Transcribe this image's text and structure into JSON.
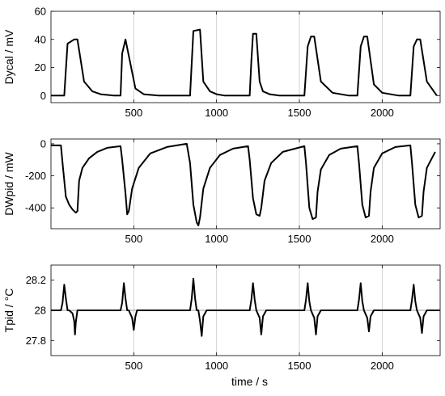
{
  "chart_data": [
    {
      "type": "line",
      "title": "",
      "xlabel": "",
      "ylabel": "Dycal / mV",
      "xlim": [
        0,
        2350
      ],
      "ylim": [
        -5,
        60
      ],
      "xticks": [
        500,
        1000,
        1500,
        2000
      ],
      "xtick_labels": [
        "500",
        "1000",
        "1500",
        "2000"
      ],
      "yticks": [
        0,
        20,
        40,
        60
      ],
      "ytick_labels": [
        "0",
        "20",
        "40",
        "60"
      ],
      "grid": "vertical",
      "series": [
        {
          "style": "black",
          "x": [
            0,
            80,
            100,
            140,
            160,
            200,
            250,
            300,
            380,
            420,
            430,
            450,
            510,
            560,
            650,
            800,
            840,
            860,
            900,
            920,
            960,
            1000,
            1050,
            1100,
            1200,
            1210,
            1220,
            1240,
            1260,
            1280,
            1320,
            1380,
            1440,
            1530,
            1550,
            1570,
            1590,
            1630,
            1700,
            1800,
            1850,
            1870,
            1890,
            1910,
            1950,
            2000,
            2100,
            2170,
            2190,
            2210,
            2230,
            2270,
            2330
          ],
          "values": [
            0,
            0,
            37,
            40,
            40,
            10,
            3,
            1,
            0,
            0,
            30,
            40,
            5,
            1,
            0,
            0,
            0,
            46,
            47,
            10,
            3,
            1,
            0,
            0,
            0,
            25,
            44,
            44,
            10,
            3,
            1,
            0,
            0,
            0,
            35,
            42,
            42,
            10,
            2,
            0,
            0,
            35,
            42,
            42,
            8,
            2,
            0,
            0,
            35,
            40,
            40,
            10,
            0
          ]
        }
      ]
    },
    {
      "type": "line",
      "title": "",
      "xlabel": "",
      "ylabel": "DWpid / mW",
      "xlim": [
        0,
        2350
      ],
      "ylim": [
        -530,
        30
      ],
      "xticks": [
        500,
        1000,
        1500,
        2000
      ],
      "xtick_labels": [
        "500",
        "1000",
        "1500",
        "2000"
      ],
      "yticks": [
        -400,
        -200,
        0
      ],
      "ytick_labels": [
        "-400",
        "-200",
        "0"
      ],
      "grid": "vertical",
      "series": [
        {
          "style": "black",
          "x": [
            0,
            60,
            70,
            90,
            110,
            130,
            150,
            160,
            170,
            190,
            230,
            280,
            340,
            420,
            430,
            450,
            460,
            470,
            490,
            530,
            600,
            700,
            820,
            840,
            860,
            880,
            890,
            900,
            920,
            960,
            1020,
            1100,
            1190,
            1200,
            1220,
            1240,
            1260,
            1270,
            1290,
            1330,
            1400,
            1530,
            1540,
            1560,
            1580,
            1600,
            1610,
            1630,
            1680,
            1750,
            1850,
            1860,
            1880,
            1900,
            1920,
            1930,
            1950,
            2000,
            2080,
            2170,
            2180,
            2200,
            2220,
            2240,
            2250,
            2270,
            2320
          ],
          "values": [
            -10,
            -10,
            -120,
            -330,
            -380,
            -410,
            -430,
            -420,
            -230,
            -150,
            -90,
            -50,
            -25,
            -15,
            -100,
            -310,
            -440,
            -420,
            -280,
            -150,
            -60,
            -20,
            0,
            -120,
            -380,
            -490,
            -510,
            -460,
            -280,
            -150,
            -70,
            -30,
            -15,
            -100,
            -340,
            -440,
            -450,
            -400,
            -230,
            -120,
            -50,
            -15,
            -120,
            -400,
            -470,
            -460,
            -300,
            -160,
            -70,
            -30,
            -15,
            -120,
            -380,
            -460,
            -450,
            -300,
            -150,
            -60,
            -20,
            -10,
            -120,
            -380,
            -460,
            -450,
            -300,
            -150,
            -50
          ]
        }
      ]
    },
    {
      "type": "line",
      "title": "",
      "xlabel": "time / s",
      "ylabel": "Tpid / °C",
      "xlim": [
        0,
        2350
      ],
      "ylim": [
        27.7,
        28.3
      ],
      "xticks": [
        500,
        1000,
        1500,
        2000
      ],
      "xtick_labels": [
        "500",
        "1000",
        "1500",
        "2000"
      ],
      "yticks": [
        27.8,
        28,
        28.2
      ],
      "ytick_labels": [
        "27.8",
        "28",
        "28.2"
      ],
      "grid": "vertical",
      "series": [
        {
          "style": "gray",
          "x": [
            0,
            2350
          ],
          "values": [
            28.0,
            28.0
          ]
        },
        {
          "style": "black",
          "x": [
            0,
            60,
            70,
            80,
            90,
            100,
            110,
            130,
            140,
            145,
            150,
            160,
            180,
            220,
            420,
            430,
            440,
            450,
            460,
            470,
            490,
            500,
            510,
            520,
            540,
            580,
            840,
            850,
            860,
            870,
            880,
            890,
            900,
            910,
            920,
            940,
            980,
            1200,
            1210,
            1220,
            1230,
            1240,
            1260,
            1270,
            1280,
            1300,
            1340,
            1530,
            1540,
            1550,
            1560,
            1570,
            1590,
            1600,
            1610,
            1630,
            1670,
            1850,
            1860,
            1870,
            1880,
            1890,
            1910,
            1920,
            1930,
            1950,
            1990,
            2170,
            2180,
            2190,
            2200,
            2210,
            2230,
            2240,
            2250,
            2270,
            2350
          ],
          "values": [
            28.0,
            28.0,
            28.05,
            28.17,
            28.08,
            28.0,
            28.0,
            27.98,
            27.93,
            27.84,
            27.92,
            28.0,
            28.0,
            28.0,
            28.0,
            28.05,
            28.18,
            28.08,
            28.0,
            28.0,
            27.95,
            27.87,
            27.96,
            28.0,
            28.0,
            28.0,
            28.0,
            28.08,
            28.21,
            28.08,
            28.0,
            28.0,
            27.93,
            27.83,
            27.96,
            28.0,
            28.0,
            28.0,
            28.07,
            28.18,
            28.07,
            28.0,
            27.95,
            27.84,
            27.96,
            28.0,
            28.0,
            28.0,
            28.07,
            28.18,
            28.06,
            28.0,
            27.95,
            27.84,
            27.96,
            28.0,
            28.0,
            28.0,
            28.07,
            28.18,
            28.06,
            28.0,
            27.95,
            27.86,
            27.96,
            28.0,
            28.0,
            28.0,
            28.07,
            28.17,
            28.06,
            28.0,
            27.95,
            27.85,
            27.96,
            28.0,
            28.0
          ]
        }
      ]
    }
  ]
}
